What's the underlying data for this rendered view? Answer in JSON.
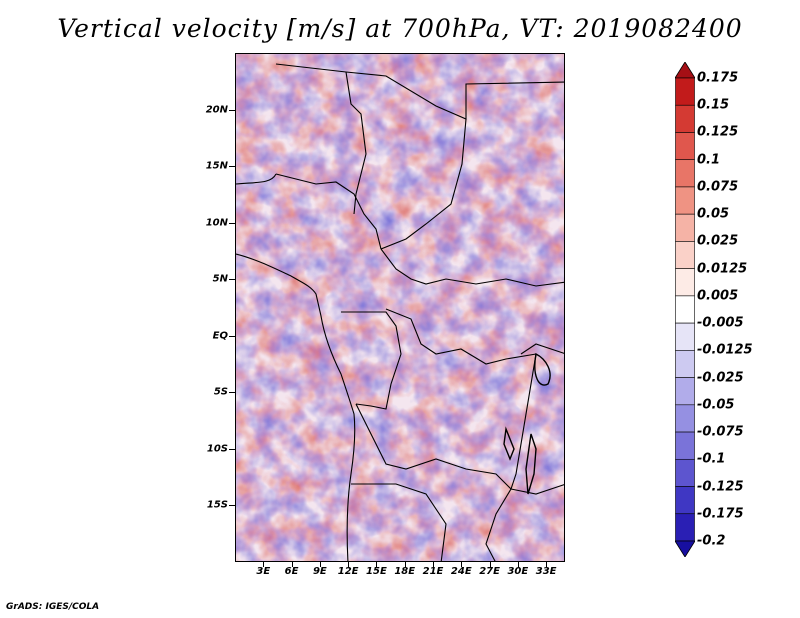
{
  "title": "Vertical velocity [m/s] at 700hPa, VT: 2019082400",
  "credit": "GrADS: IGES/COLA",
  "variable": "Vertical velocity",
  "units": "m/s",
  "level": "700hPa",
  "valid_time": "2019082400",
  "lat_labels": [
    "20N",
    "15N",
    "10N",
    "5N",
    "EQ",
    "5S",
    "10S",
    "15S"
  ],
  "lon_labels": [
    "3E",
    "6E",
    "9E",
    "12E",
    "15E",
    "18E",
    "21E",
    "24E",
    "27E",
    "30E",
    "33E"
  ],
  "colorbar": {
    "labels": [
      "0.175",
      "0.15",
      "0.125",
      "0.1",
      "0.075",
      "0.05",
      "0.025",
      "0.0125",
      "0.005",
      "-0.005",
      "-0.0125",
      "-0.025",
      "-0.05",
      "-0.075",
      "-0.1",
      "-0.125",
      "-0.175",
      "-0.2"
    ],
    "colors": [
      "#a50f15",
      "#c21b1b",
      "#d43a33",
      "#e0574d",
      "#e87567",
      "#ef9383",
      "#f5b3a6",
      "#fad1c8",
      "#fdebe6",
      "#ffffff",
      "#e6e4f7",
      "#cdcaf1",
      "#b1acea",
      "#9590e2",
      "#7a73d9",
      "#5d55cf",
      "#3f37c3",
      "#2a1fb4",
      "#170fa0"
    ]
  },
  "map_region": {
    "lat_min": -20,
    "lat_max": 25,
    "lon_min": 0,
    "lon_max": 35
  }
}
